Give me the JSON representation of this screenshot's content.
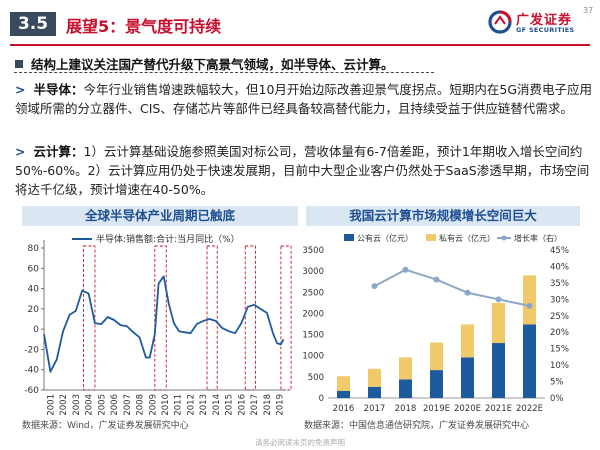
{
  "header": {
    "section": "3.5",
    "title": "展望5：景气度可持续",
    "logo_cn": "广发证券",
    "logo_en": "GF SECURITIES",
    "page_number": "37",
    "colors": {
      "accent": "#c8102e",
      "badge": "#3a4a5c",
      "brand_blue": "#1d4f91"
    }
  },
  "bullet_main": "结构上建议关注国产替代升级下高景气领域，如半导体、云计算。",
  "paragraphs": [
    {
      "label": "半导体：",
      "text": "今年行业销售增速跌幅较大，但10月开始边际改善迎景气度拐点。短期内在5G消费电子应用领域所需的分立器件、CIS、存储芯片等部件已经具备较高替代能力，且持续受益于供应链替代需求。"
    },
    {
      "label": "云计算：",
      "text": "1）云计算基础设施参照美国对标公司，营收体量有6-7倍差距，预计1年期收入增长空间约50%-60%。2）云计算应用仍处于快速发展期，目前中大型企业客户仍然处于SaaS渗透早期，市场空间将达千亿级，预计增速在40-50%。"
    }
  ],
  "chart_data": [
    {
      "type": "line",
      "title": "全球半导体产业周期已触底",
      "series": [
        {
          "name": "半导体:销售额:合计:当月同比（%）",
          "color": "#1d5a9e",
          "x": [
            2001.0,
            2001.5,
            2002.0,
            2002.5,
            2003.0,
            2003.5,
            2004.0,
            2004.5,
            2005.0,
            2005.5,
            2006.0,
            2006.5,
            2007.0,
            2007.5,
            2008.0,
            2008.5,
            2009.0,
            2009.3,
            2009.7,
            2010.0,
            2010.4,
            2010.8,
            2011.2,
            2011.6,
            2012.0,
            2012.5,
            2013.0,
            2013.5,
            2014.0,
            2014.5,
            2015.0,
            2015.5,
            2016.0,
            2016.5,
            2017.0,
            2017.5,
            2018.0,
            2018.5,
            2019.0,
            2019.3,
            2019.6,
            2019.8
          ],
          "y": [
            -5,
            -42,
            -30,
            -2,
            14,
            18,
            38,
            35,
            6,
            5,
            12,
            9,
            4,
            3,
            -3,
            -8,
            -28,
            -28,
            -5,
            45,
            52,
            25,
            6,
            -2,
            -3,
            -4,
            5,
            8,
            10,
            8,
            1,
            -2,
            -4,
            6,
            22,
            24,
            20,
            16,
            -5,
            -14,
            -15,
            -10
          ]
        }
      ],
      "shaded_periods": [
        [
          2004.1,
          2005.0
        ],
        [
          2009.7,
          2010.6
        ],
        [
          2013.8,
          2014.6
        ],
        [
          2016.8,
          2017.6
        ],
        [
          2019.6,
          2020.4
        ]
      ],
      "x_tick_labels": [
        "2001",
        "2002",
        "2003",
        "2004",
        "2005",
        "2006",
        "2007",
        "2008",
        "2009",
        "2010",
        "2011",
        "2012",
        "2013",
        "2014",
        "2015",
        "2016",
        "2017",
        "2018",
        "2019"
      ],
      "y_ticks": [
        -60,
        -40,
        -20,
        0,
        20,
        40,
        60,
        80
      ],
      "ylim": [
        -60,
        80
      ],
      "grid": false,
      "legend_position": "top"
    },
    {
      "type": "bar",
      "stacked": true,
      "title": "我国云计算市场规模增长空间巨大",
      "categories": [
        "2016",
        "2017",
        "2018",
        "2019E",
        "2020E",
        "2021E",
        "2022E"
      ],
      "series": [
        {
          "name": "公有云（亿元）",
          "color": "#1d5a9e",
          "values": [
            170,
            265,
            440,
            660,
            960,
            1300,
            1740
          ]
        },
        {
          "name": "私有云（亿元）",
          "color": "#f0c96a",
          "values": [
            345,
            425,
            520,
            650,
            780,
            950,
            1160
          ]
        },
        {
          "name": "增长率（右）",
          "color": "#8da7c8",
          "axis": "right",
          "values": [
            null,
            34,
            39,
            36,
            32,
            30,
            28
          ]
        }
      ],
      "y_left_ticks": [
        0,
        500,
        1000,
        1500,
        2000,
        2500,
        3000,
        3500
      ],
      "ylim_left": [
        0,
        3500
      ],
      "y_right_ticks": [
        "0%",
        "5%",
        "10%",
        "15%",
        "20%",
        "25%",
        "30%",
        "35%",
        "40%",
        "45%"
      ],
      "ylim_right": [
        0,
        45
      ],
      "grid": false,
      "legend_position": "top"
    }
  ],
  "sources": {
    "left": "数据来源：Wind，广发证券发展研究中心",
    "right": "数据来源：中国信息通信研究院，广发证券发展研究中心"
  },
  "footer": "请务必阅读末页的免责声明"
}
